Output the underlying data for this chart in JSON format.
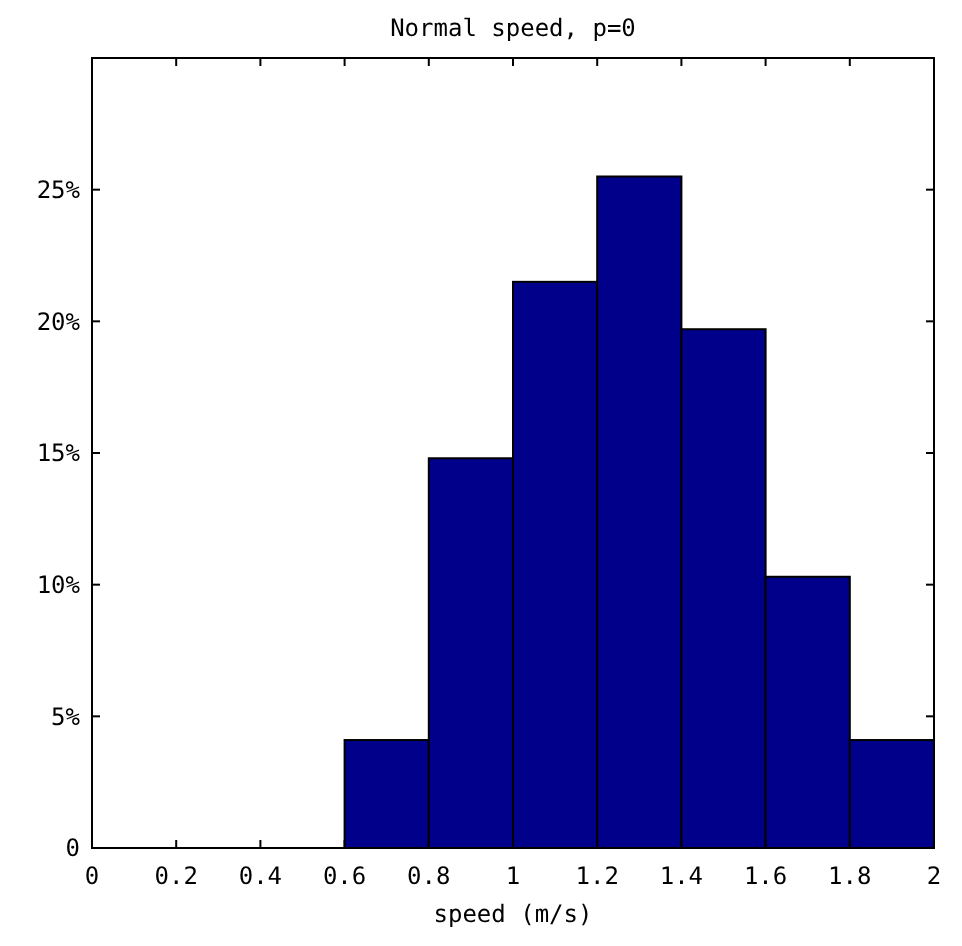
{
  "chart_data": {
    "type": "histogram",
    "title": "Normal speed, p=0",
    "xlabel": "speed (m/s)",
    "bins": [
      0,
      0.2,
      0.4,
      0.6,
      0.8,
      1,
      1.2,
      1.4,
      1.6,
      1.8,
      2
    ],
    "values": [
      0,
      0,
      0,
      4.1,
      14.8,
      21.5,
      25.5,
      19.7,
      10.3,
      4.1
    ],
    "color": "#00008b",
    "xlim": [
      0,
      2
    ],
    "xticks": [
      0,
      0.2,
      0.4,
      0.6,
      0.8,
      1,
      1.2,
      1.4,
      1.6,
      1.8,
      2
    ],
    "ylim": [
      0,
      30
    ],
    "yticks": [
      {
        "value": 0,
        "label": "0"
      },
      {
        "value": 5,
        "label": "5%"
      },
      {
        "value": 10,
        "label": "10%"
      },
      {
        "value": 15,
        "label": "15%"
      },
      {
        "value": 20,
        "label": "20%"
      },
      {
        "value": 25,
        "label": "25%"
      }
    ],
    "grid": false
  }
}
